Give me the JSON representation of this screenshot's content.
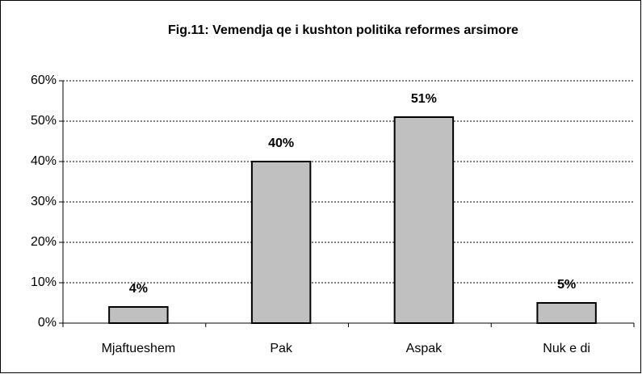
{
  "chart_data": {
    "type": "bar",
    "title": "Fig.11: Vemendja qe i kushton politika reformes arsimore",
    "categories": [
      "Mjaftueshem",
      "Pak",
      "Aspak",
      "Nuk e di"
    ],
    "values": [
      4,
      40,
      51,
      5
    ],
    "value_labels": [
      "4%",
      "40%",
      "51%",
      "5%"
    ],
    "color": "#c0c0c0",
    "ylim": [
      0,
      60
    ],
    "yticks": [
      {
        "value": 0,
        "label": "0%"
      },
      {
        "value": 10,
        "label": "10%"
      },
      {
        "value": 20,
        "label": "20%"
      },
      {
        "value": 30,
        "label": "30%"
      },
      {
        "value": 40,
        "label": "40%"
      },
      {
        "value": 50,
        "label": "50%"
      },
      {
        "value": 60,
        "label": "60%"
      }
    ],
    "grid": true
  }
}
